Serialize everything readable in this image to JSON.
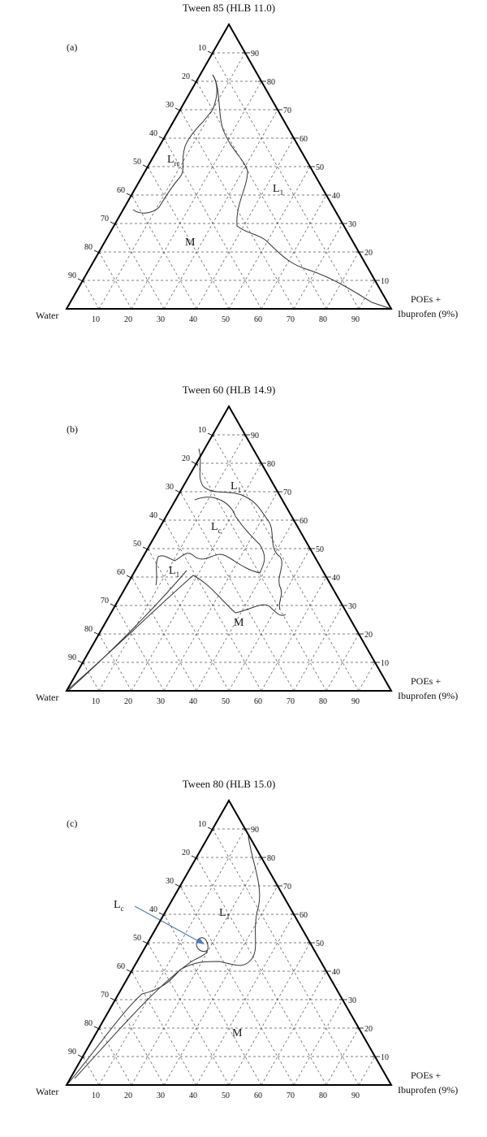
{
  "panels": [
    {
      "title": "Tween 85 (HLB  11.0)",
      "label": "(a)",
      "regions": [
        {
          "main": "L",
          "sub": "rc"
        },
        {
          "main": "L",
          "sub": "1"
        },
        {
          "main": "M"
        }
      ],
      "left_ticks": [
        10,
        20,
        30,
        40,
        50,
        60,
        70,
        80,
        90
      ],
      "right_ticks": [
        90,
        80,
        70,
        60,
        50,
        40,
        30,
        20,
        10
      ],
      "bottom_ticks": [
        10,
        20,
        30,
        40,
        50,
        60,
        70,
        80,
        90
      ],
      "vertex_left": "Water",
      "vertex_right": [
        "POEs +",
        "Ibuprofen (9%)"
      ]
    },
    {
      "title": "Tween 60 (HLB 14.9)",
      "label": "(b)",
      "regions": [
        {
          "main": "L",
          "sub": "1"
        },
        {
          "main": "L",
          "sub": "c"
        },
        {
          "main": "L",
          "sub": "1"
        },
        {
          "main": "M"
        }
      ],
      "left_ticks": [
        10,
        20,
        30,
        40,
        50,
        60,
        70,
        80,
        90
      ],
      "right_ticks": [
        90,
        80,
        70,
        60,
        50,
        40,
        30,
        20,
        10
      ],
      "bottom_ticks": [
        10,
        20,
        30,
        40,
        50,
        60,
        70,
        80,
        90
      ],
      "vertex_left": "Water",
      "vertex_right": [
        "POEs +",
        "Ibuprofen (9%)"
      ]
    },
    {
      "title": "Tween 80 (HLB 15.0)",
      "label": "(c)",
      "regions": [
        {
          "main": "L",
          "sub": "c"
        },
        {
          "main": "L",
          "sub": "1"
        },
        {
          "main": "M"
        }
      ],
      "left_ticks": [
        10,
        20,
        30,
        40,
        50,
        60,
        70,
        80,
        90
      ],
      "right_ticks": [
        90,
        80,
        70,
        60,
        50,
        40,
        30,
        20,
        10
      ],
      "bottom_ticks": [
        10,
        20,
        30,
        40,
        50,
        60,
        70,
        80,
        90
      ],
      "vertex_left": "Water",
      "vertex_right": [
        "POEs +",
        "Ibuprofen (9%)"
      ]
    }
  ]
}
